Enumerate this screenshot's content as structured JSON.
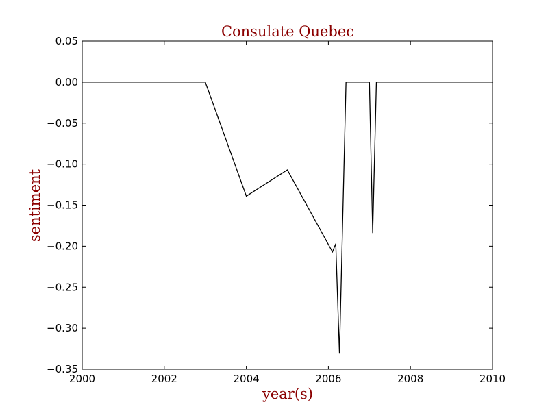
{
  "chart_data": {
    "type": "line",
    "title": "Consulate Quebec",
    "xlabel": "year(s)",
    "ylabel": "sentiment",
    "xlim": [
      2000,
      2010
    ],
    "ylim": [
      -0.35,
      0.05
    ],
    "xticks": [
      2000,
      2002,
      2004,
      2006,
      2008,
      2010
    ],
    "yticks": [
      0.05,
      0.0,
      -0.05,
      -0.1,
      -0.15,
      -0.2,
      -0.25,
      -0.3,
      -0.35
    ],
    "xtick_labels": [
      "2000",
      "2002",
      "2004",
      "2006",
      "2008",
      "2010"
    ],
    "ytick_labels": [
      "0.05",
      "0.00",
      "−0.05",
      "−0.10",
      "−0.15",
      "−0.20",
      "−0.25",
      "−0.30",
      "−0.35"
    ],
    "grid": false,
    "series": [
      {
        "color": "#000000",
        "points": [
          [
            2000.0,
            0.0
          ],
          [
            2003.0,
            0.0
          ],
          [
            2004.0,
            -0.139
          ],
          [
            2005.0,
            -0.107
          ],
          [
            2006.1,
            -0.207
          ],
          [
            2006.18,
            -0.197
          ],
          [
            2006.27,
            -0.331
          ],
          [
            2006.43,
            0.0
          ],
          [
            2007.0,
            0.0
          ],
          [
            2007.08,
            -0.184
          ],
          [
            2007.17,
            0.0
          ],
          [
            2010.0,
            0.0
          ]
        ]
      }
    ],
    "title_color": "#8b0000",
    "label_color": "#8b0000"
  }
}
